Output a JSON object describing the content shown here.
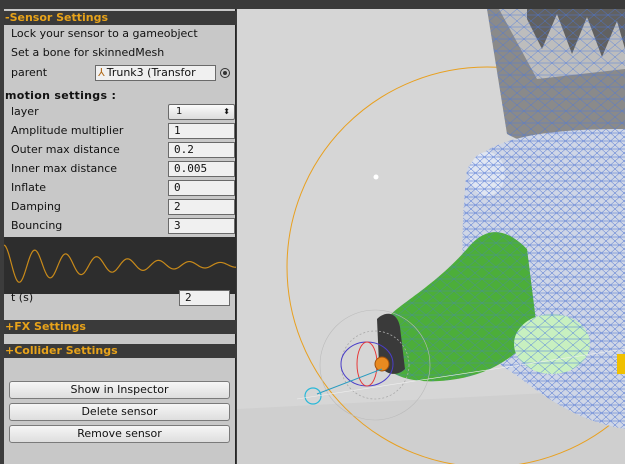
{
  "sensor_settings": {
    "header": "-Sensor Settings",
    "lock_text": "Lock your sensor to a gameobject",
    "bone_text": "Set a bone for skinnedMesh",
    "parent_label": "parent",
    "parent_value": "Trunk3 (Transfor"
  },
  "motion_settings": {
    "title": "motion settings :",
    "layer_label": "layer",
    "layer_value": "1",
    "amplitude_label": "Amplitude multiplier",
    "amplitude_value": "1",
    "outer_label": "Outer max distance",
    "outer_value": "0.2",
    "inner_label": "Inner max distance",
    "inner_value": "0.005",
    "inflate_label": "Inflate",
    "inflate_value": "0",
    "damping_label": "Damping",
    "damping_value": "2",
    "bouncing_label": "Bouncing",
    "bouncing_value": "3",
    "t_label": "t (s)",
    "t_value": "2"
  },
  "fx_settings": {
    "header": "+FX Settings"
  },
  "collider_settings": {
    "header": "+Collider Settings"
  },
  "buttons": {
    "show_inspector": "Show in Inspector",
    "delete_sensor": "Delete sensor",
    "remove_sensor": "Remove sensor"
  },
  "colors": {
    "header_text": "#e8a31a",
    "header_bg": "#3a3a3a",
    "panel_bg": "#c8c8c8",
    "curve_line": "#c88a1a",
    "mesh_green": "#4cae3a",
    "wire_blue": "#4a78e0",
    "gizmo_orange": "#e8a020"
  }
}
